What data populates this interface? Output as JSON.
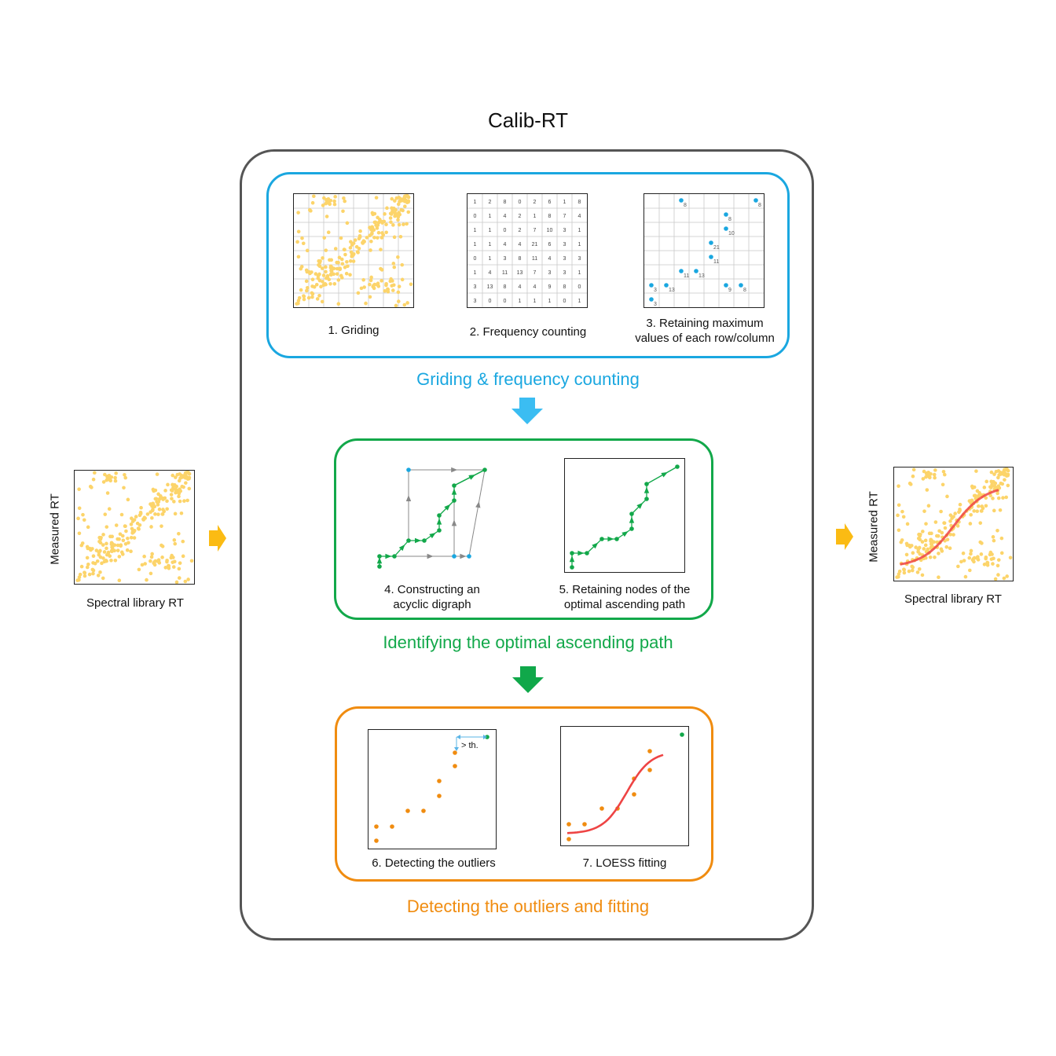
{
  "title": "Calib-RT",
  "input": {
    "ylabel": "Measured RT",
    "xlabel": "Spectral library RT"
  },
  "output": {
    "ylabel": "Measured RT",
    "xlabel": "Spectral library RT"
  },
  "stages": {
    "griding": {
      "title": "Griding & frequency counting",
      "steps": [
        {
          "label": "1. Griding"
        },
        {
          "label": "2. Frequency  counting"
        },
        {
          "label": "3. Retaining maximum\nvalues  of each row/column"
        }
      ],
      "matrix": [
        [
          "1",
          "2",
          "8",
          "0",
          "2",
          "6",
          "1",
          "8"
        ],
        [
          "0",
          "1",
          "4",
          "2",
          "1",
          "8",
          "7",
          "4"
        ],
        [
          "1",
          "1",
          "0",
          "2",
          "7",
          "10",
          "3",
          "1"
        ],
        [
          "1",
          "1",
          "4",
          "4",
          "21",
          "6",
          "3",
          "1"
        ],
        [
          "0",
          "1",
          "3",
          "8",
          "11",
          "4",
          "3",
          "3"
        ],
        [
          "1",
          "4",
          "11",
          "13",
          "7",
          "3",
          "3",
          "1"
        ],
        [
          "3",
          "13",
          "8",
          "4",
          "4",
          "9",
          "8",
          "0"
        ],
        [
          "3",
          "0",
          "0",
          "1",
          "1",
          "1",
          "0",
          "1"
        ]
      ],
      "maxima": [
        {
          "col": 2,
          "row": 0,
          "v": "8"
        },
        {
          "col": 7,
          "row": 0,
          "v": "8"
        },
        {
          "col": 5,
          "row": 1,
          "v": "8"
        },
        {
          "col": 5,
          "row": 2,
          "v": "10"
        },
        {
          "col": 4,
          "row": 3,
          "v": "21"
        },
        {
          "col": 4,
          "row": 4,
          "v": "11"
        },
        {
          "col": 2,
          "row": 5,
          "v": "11"
        },
        {
          "col": 3,
          "row": 5,
          "v": "13"
        },
        {
          "col": 0,
          "row": 6,
          "v": "3"
        },
        {
          "col": 1,
          "row": 6,
          "v": "13"
        },
        {
          "col": 5,
          "row": 6,
          "v": "9"
        },
        {
          "col": 6,
          "row": 6,
          "v": "8"
        },
        {
          "col": 0,
          "row": 7,
          "v": "3"
        }
      ]
    },
    "path": {
      "title": "Identifying the optimal ascending path",
      "steps": [
        {
          "label": "4. Constructing  an\nacyclic digraph"
        },
        {
          "label": "5. Retaining nodes of the\noptimal ascending path"
        }
      ]
    },
    "fitting": {
      "title": "Detecting the outliers and fitting",
      "threshold_label": "> th.",
      "steps": [
        {
          "label": "6. Detecting the outliers"
        },
        {
          "label": "7. LOESS fitting"
        }
      ]
    }
  },
  "colors": {
    "scatter": "#fcd46a",
    "blue": "#1aa7e0",
    "green": "#12a84a",
    "orange": "#f08c10",
    "arrow_yellow": "#fbbb13",
    "fit_red": "#ee4444"
  }
}
